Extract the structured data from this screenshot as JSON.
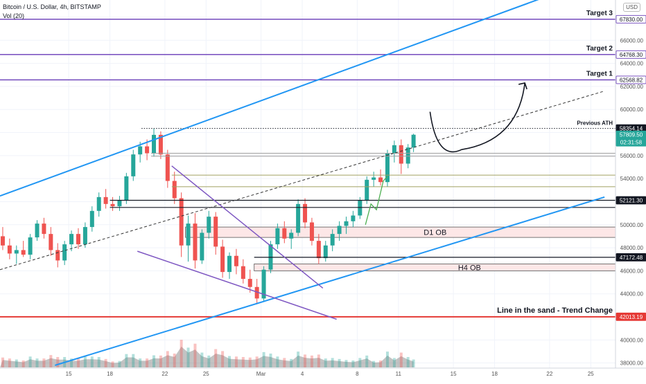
{
  "header": {
    "title": "Bitcoin / U.S. Dollar, 4h, BITSTAMP",
    "volume_label": "Vol (20)",
    "currency_button": "USD"
  },
  "colors": {
    "up": "#26a69a",
    "down": "#ef5350",
    "channel": "#2196f3",
    "target": "#673ab7",
    "line_in_sand": "#e53935",
    "wedge": "#7e57c2",
    "ob_fill": "#fde7e7"
  },
  "chart_data": {
    "type": "candlestick",
    "title": "Bitcoin / U.S. Dollar, 4h, BITSTAMP",
    "ylim": [
      37500,
      69500
    ],
    "x_axis_ticks": [
      {
        "label": "15",
        "day": 15
      },
      {
        "label": "18",
        "day": 18
      },
      {
        "label": "22",
        "day": 22
      },
      {
        "label": "25",
        "day": 25
      },
      {
        "label": "Mar",
        "day": 29
      },
      {
        "label": "4",
        "day": 32
      },
      {
        "label": "8",
        "day": 36
      },
      {
        "label": "11",
        "day": 39
      },
      {
        "label": "15",
        "day": 43
      },
      {
        "label": "18",
        "day": 46
      },
      {
        "label": "22",
        "day": 50
      },
      {
        "label": "25",
        "day": 53
      }
    ],
    "y_axis_ticks": [
      38000,
      40000,
      42000,
      44000,
      46000,
      48000,
      50000,
      52000,
      54000,
      56000,
      58000,
      60000,
      62000,
      64000,
      66000,
      68000
    ],
    "price_tags": [
      {
        "value": 67830.0,
        "text": "67830.00",
        "kind": "target"
      },
      {
        "value": 64768.3,
        "text": "64768.30",
        "kind": "target"
      },
      {
        "value": 62568.82,
        "text": "62568.82",
        "kind": "target"
      },
      {
        "value": 58354.14,
        "text": "58354.14",
        "kind": "ath"
      },
      {
        "value": 57809.5,
        "text": "57809.50",
        "kind": "last",
        "countdown": "02:31:58"
      },
      {
        "value": 52121.3,
        "text": "52121.30",
        "kind": "level"
      },
      {
        "value": 47172.48,
        "text": "47172.48",
        "kind": "level"
      },
      {
        "value": 42013.19,
        "text": "42013.19",
        "kind": "sand"
      }
    ],
    "target_lines": [
      {
        "label": "Target 3",
        "value": 67830.0
      },
      {
        "label": "Target 2",
        "value": 64768.3
      },
      {
        "label": "Target 1",
        "value": 62568.82
      }
    ],
    "previous_ath": {
      "label": "Previous ATH",
      "value": 58354.14,
      "from_day": 20.3
    },
    "line_in_sand": {
      "label": "Line in the sand - Trend Change",
      "value": 42013.19
    },
    "order_blocks": [
      {
        "label": "D1 OB",
        "from_day": 23.5,
        "low": 48900,
        "high": 49800
      },
      {
        "label": "H4 OB",
        "from_day": 28.5,
        "low": 46000,
        "high": 46600
      }
    ],
    "horizontal_levels": [
      {
        "value": 56200,
        "from_day": 21,
        "kind": "grey"
      },
      {
        "value": 55950,
        "from_day": 21,
        "kind": "grey"
      },
      {
        "value": 54300,
        "from_day": 22.5,
        "kind": "olive"
      },
      {
        "value": 53300,
        "from_day": 22.5,
        "kind": "olive"
      },
      {
        "value": 52121.3,
        "from_day": 18,
        "kind": "black"
      },
      {
        "value": 51500,
        "from_day": 18,
        "kind": "black"
      },
      {
        "value": 47172.48,
        "from_day": 28.5,
        "kind": "black"
      }
    ],
    "trendlines": [
      {
        "kind": "channel",
        "points": [
          [
            10,
            52500
          ],
          [
            50,
            69900
          ]
        ]
      },
      {
        "kind": "channel",
        "points": [
          [
            14,
            37800
          ],
          [
            54,
            52400
          ]
        ]
      },
      {
        "kind": "dashed",
        "points": [
          [
            10,
            46100
          ],
          [
            54,
            61600
          ]
        ]
      },
      {
        "kind": "wedge",
        "points": [
          [
            22.5,
            55100
          ],
          [
            33.5,
            44500
          ]
        ]
      },
      {
        "kind": "wedge",
        "points": [
          [
            20,
            47700
          ],
          [
            34.5,
            41800
          ]
        ]
      }
    ],
    "candles": [
      {
        "d": 10.2,
        "o": 49000,
        "h": 49800,
        "l": 47800,
        "c": 48200
      },
      {
        "d": 10.7,
        "o": 48200,
        "h": 48800,
        "l": 47000,
        "c": 47500
      },
      {
        "d": 11.2,
        "o": 47500,
        "h": 48200,
        "l": 46600,
        "c": 47800
      },
      {
        "d": 11.7,
        "o": 47800,
        "h": 48600,
        "l": 47200,
        "c": 47400
      },
      {
        "d": 12.2,
        "o": 47400,
        "h": 49200,
        "l": 47000,
        "c": 48900
      },
      {
        "d": 12.7,
        "o": 48900,
        "h": 50400,
        "l": 48600,
        "c": 50100
      },
      {
        "d": 13.2,
        "o": 50100,
        "h": 50600,
        "l": 48800,
        "c": 49200
      },
      {
        "d": 13.7,
        "o": 49200,
        "h": 49800,
        "l": 47300,
        "c": 47800
      },
      {
        "d": 14.2,
        "o": 47800,
        "h": 48400,
        "l": 46300,
        "c": 46900
      },
      {
        "d": 14.7,
        "o": 46900,
        "h": 48600,
        "l": 46500,
        "c": 48300
      },
      {
        "d": 15.2,
        "o": 48300,
        "h": 49500,
        "l": 47700,
        "c": 49200
      },
      {
        "d": 15.7,
        "o": 49200,
        "h": 49700,
        "l": 47900,
        "c": 48300
      },
      {
        "d": 16.2,
        "o": 48300,
        "h": 50200,
        "l": 48000,
        "c": 49800
      },
      {
        "d": 16.7,
        "o": 49800,
        "h": 51600,
        "l": 49400,
        "c": 51200
      },
      {
        "d": 17.2,
        "o": 51200,
        "h": 52800,
        "l": 50700,
        "c": 52400
      },
      {
        "d": 17.7,
        "o": 52400,
        "h": 53100,
        "l": 51400,
        "c": 51800
      },
      {
        "d": 18.2,
        "o": 51800,
        "h": 52400,
        "l": 51200,
        "c": 51600
      },
      {
        "d": 18.7,
        "o": 51600,
        "h": 52500,
        "l": 51200,
        "c": 52100
      },
      {
        "d": 19.2,
        "o": 52100,
        "h": 54500,
        "l": 51800,
        "c": 54200
      },
      {
        "d": 19.7,
        "o": 54200,
        "h": 56500,
        "l": 53800,
        "c": 56100
      },
      {
        "d": 20.2,
        "o": 56100,
        "h": 57200,
        "l": 55400,
        "c": 56800
      },
      {
        "d": 20.7,
        "o": 56800,
        "h": 57400,
        "l": 55600,
        "c": 56200
      },
      {
        "d": 21.2,
        "o": 56200,
        "h": 58350,
        "l": 55900,
        "c": 57800
      },
      {
        "d": 21.7,
        "o": 57800,
        "h": 58100,
        "l": 55700,
        "c": 56100
      },
      {
        "d": 22.2,
        "o": 56100,
        "h": 56500,
        "l": 53200,
        "c": 53800
      },
      {
        "d": 22.7,
        "o": 53800,
        "h": 54600,
        "l": 51800,
        "c": 52300
      },
      {
        "d": 23.2,
        "o": 52300,
        "h": 52800,
        "l": 47200,
        "c": 48200
      },
      {
        "d": 23.7,
        "o": 48200,
        "h": 50800,
        "l": 46800,
        "c": 50100
      },
      {
        "d": 24.2,
        "o": 50100,
        "h": 51000,
        "l": 46200,
        "c": 46900
      },
      {
        "d": 24.7,
        "o": 46900,
        "h": 49600,
        "l": 46600,
        "c": 49300
      },
      {
        "d": 25.2,
        "o": 49300,
        "h": 51200,
        "l": 48800,
        "c": 50700
      },
      {
        "d": 25.7,
        "o": 50700,
        "h": 51100,
        "l": 47400,
        "c": 48100
      },
      {
        "d": 26.2,
        "o": 48100,
        "h": 48700,
        "l": 45400,
        "c": 45900
      },
      {
        "d": 26.7,
        "o": 45900,
        "h": 47600,
        "l": 45300,
        "c": 47300
      },
      {
        "d": 27.2,
        "o": 47300,
        "h": 47900,
        "l": 45700,
        "c": 46400
      },
      {
        "d": 27.7,
        "o": 46400,
        "h": 47000,
        "l": 44900,
        "c": 45300
      },
      {
        "d": 28.2,
        "o": 45300,
        "h": 46100,
        "l": 44100,
        "c": 44600
      },
      {
        "d": 28.7,
        "o": 44600,
        "h": 45300,
        "l": 43100,
        "c": 43600
      },
      {
        "d": 29.2,
        "o": 43600,
        "h": 46400,
        "l": 43300,
        "c": 46100
      },
      {
        "d": 29.7,
        "o": 46100,
        "h": 48600,
        "l": 45800,
        "c": 48300
      },
      {
        "d": 30.2,
        "o": 48300,
        "h": 50100,
        "l": 47900,
        "c": 49700
      },
      {
        "d": 30.7,
        "o": 49700,
        "h": 50300,
        "l": 48400,
        "c": 48800
      },
      {
        "d": 31.2,
        "o": 48800,
        "h": 49600,
        "l": 47900,
        "c": 49300
      },
      {
        "d": 31.7,
        "o": 49300,
        "h": 52200,
        "l": 49000,
        "c": 51800
      },
      {
        "d": 32.2,
        "o": 51800,
        "h": 52300,
        "l": 49700,
        "c": 50200
      },
      {
        "d": 32.7,
        "o": 50200,
        "h": 50600,
        "l": 48200,
        "c": 48600
      },
      {
        "d": 33.2,
        "o": 48600,
        "h": 49200,
        "l": 46600,
        "c": 47100
      },
      {
        "d": 33.7,
        "o": 47100,
        "h": 48600,
        "l": 46800,
        "c": 48200
      },
      {
        "d": 34.2,
        "o": 48200,
        "h": 49600,
        "l": 47700,
        "c": 49200
      },
      {
        "d": 34.7,
        "o": 49200,
        "h": 50300,
        "l": 48600,
        "c": 49900
      },
      {
        "d": 35.2,
        "o": 49900,
        "h": 50700,
        "l": 49200,
        "c": 50300
      },
      {
        "d": 35.7,
        "o": 50300,
        "h": 51200,
        "l": 49800,
        "c": 50800
      },
      {
        "d": 36.2,
        "o": 50800,
        "h": 52400,
        "l": 50500,
        "c": 52100
      },
      {
        "d": 36.7,
        "o": 52100,
        "h": 54200,
        "l": 51800,
        "c": 53900
      },
      {
        "d": 37.2,
        "o": 53900,
        "h": 54600,
        "l": 53300,
        "c": 54100
      },
      {
        "d": 37.7,
        "o": 54100,
        "h": 54800,
        "l": 53400,
        "c": 53700
      },
      {
        "d": 38.2,
        "o": 53700,
        "h": 56500,
        "l": 53300,
        "c": 56200
      },
      {
        "d": 38.7,
        "o": 56200,
        "h": 57300,
        "l": 55400,
        "c": 56900
      },
      {
        "d": 39.2,
        "o": 56900,
        "h": 57400,
        "l": 54400,
        "c": 55300
      },
      {
        "d": 39.7,
        "o": 55300,
        "h": 57000,
        "l": 54900,
        "c": 56700
      },
      {
        "d": 40.1,
        "o": 56700,
        "h": 57900,
        "l": 56300,
        "c": 57809.5
      }
    ]
  }
}
